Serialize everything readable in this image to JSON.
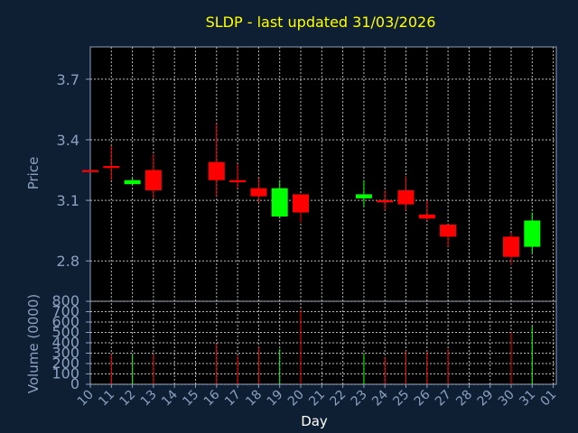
{
  "chart_data": {
    "type": "candlestick",
    "title": "SLDP - last updated 31/03/2026",
    "xlabel": "Day",
    "price_panel": {
      "ylabel": "Price",
      "ylim": [
        2.6,
        3.86
      ],
      "yticks": [
        "2.8",
        "3.1",
        "3.4",
        "3.7"
      ],
      "grid": true
    },
    "volume_panel": {
      "ylabel": "Volume (0000)",
      "ylim": [
        0,
        800
      ],
      "yticks": [
        "0",
        "100",
        "200",
        "300",
        "400",
        "500",
        "600",
        "700",
        "800"
      ],
      "grid": true
    },
    "x_ticks": [
      "10",
      "11",
      "12",
      "13",
      "14",
      "15",
      "16",
      "17",
      "18",
      "19",
      "20",
      "21",
      "22",
      "23",
      "24",
      "25",
      "26",
      "27",
      "28",
      "29",
      "30",
      "31",
      "01"
    ],
    "candles": [
      {
        "day": "10",
        "open": 3.25,
        "high": 3.25,
        "low": 3.24,
        "close": 3.24,
        "volume": 0
      },
      {
        "day": "11",
        "open": 3.27,
        "high": 3.37,
        "low": 3.2,
        "close": 3.26,
        "volume": 290
      },
      {
        "day": "12",
        "open": 3.18,
        "high": 3.21,
        "low": 3.18,
        "close": 3.2,
        "volume": 290
      },
      {
        "day": "13",
        "open": 3.25,
        "high": 3.33,
        "low": 3.11,
        "close": 3.15,
        "volume": 290
      },
      {
        "day": "16",
        "open": 3.29,
        "high": 3.48,
        "low": 3.12,
        "close": 3.2,
        "volume": 390
      },
      {
        "day": "17",
        "open": 3.2,
        "high": 3.28,
        "low": 3.16,
        "close": 3.19,
        "volume": 270
      },
      {
        "day": "18",
        "open": 3.16,
        "high": 3.21,
        "low": 3.09,
        "close": 3.12,
        "volume": 360
      },
      {
        "day": "19",
        "open": 3.02,
        "high": 3.2,
        "low": 3.01,
        "close": 3.16,
        "volume": 340
      },
      {
        "day": "20",
        "open": 3.13,
        "high": 3.13,
        "low": 2.99,
        "close": 3.04,
        "volume": 720
      },
      {
        "day": "23",
        "open": 3.11,
        "high": 3.2,
        "low": 3.07,
        "close": 3.13,
        "volume": 300
      },
      {
        "day": "24",
        "open": 3.1,
        "high": 3.15,
        "low": 3.05,
        "close": 3.09,
        "volume": 260
      },
      {
        "day": "25",
        "open": 3.15,
        "high": 3.22,
        "low": 3.05,
        "close": 3.08,
        "volume": 320
      },
      {
        "day": "26",
        "open": 3.03,
        "high": 3.1,
        "low": 3.0,
        "close": 3.01,
        "volume": 310
      },
      {
        "day": "27",
        "open": 2.98,
        "high": 2.98,
        "low": 2.87,
        "close": 2.92,
        "volume": 340
      },
      {
        "day": "30",
        "open": 2.92,
        "high": 2.94,
        "low": 2.78,
        "close": 2.82,
        "volume": 500
      },
      {
        "day": "31",
        "open": 2.87,
        "high": 3.04,
        "low": 2.84,
        "close": 3.0,
        "volume": 560
      }
    ],
    "colors": {
      "up": "#00ff00",
      "down": "#ff0000",
      "background": "#0f1f33",
      "plot_background": "#000000",
      "grid": "#bbbbbb",
      "title": "#ffff00",
      "axis_text": "#8aa0c0",
      "xlabel": "#ffffff"
    }
  }
}
